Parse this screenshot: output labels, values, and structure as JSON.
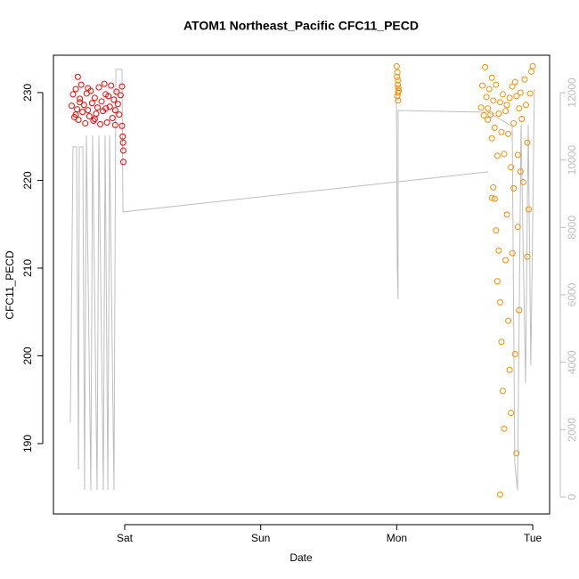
{
  "chart_data": {
    "type": "scatter",
    "title": "ATOM1 Northeast_Pacific CFC11_PECD",
    "x_label": "Date",
    "y_label": "CFC11_PECD",
    "xlim": [
      -0.524,
      3.124
    ],
    "xticks": [
      {
        "value": 0,
        "label": "Sat"
      },
      {
        "value": 1,
        "label": "Sun"
      },
      {
        "value": 2,
        "label": "Mon"
      },
      {
        "value": 3,
        "label": "Tue"
      }
    ],
    "ylim": [
      181.98,
      234.26
    ],
    "yticks": [
      190,
      200,
      210,
      220,
      230
    ],
    "y2lim": [
      -502,
      13110
    ],
    "y2ticks": [
      0,
      2000,
      4000,
      6000,
      8000,
      10000,
      12000
    ],
    "series": [
      {
        "color": "#ff0000",
        "x": [
          -0.39,
          -0.38,
          -0.37,
          -0.36,
          -0.35,
          -0.345,
          -0.34,
          -0.33,
          -0.32,
          -0.31,
          -0.3,
          -0.29,
          -0.28,
          -0.27,
          -0.26,
          -0.25,
          -0.24,
          -0.23,
          -0.22,
          -0.21,
          -0.2,
          -0.19,
          -0.18,
          -0.17,
          -0.16,
          -0.15,
          -0.14,
          -0.13,
          -0.12,
          -0.11,
          -0.1,
          -0.09,
          -0.08,
          -0.07,
          -0.06,
          -0.05,
          -0.04,
          -0.03,
          -0.02,
          -0.015,
          -0.012,
          -0.01,
          -0.01,
          -0.02,
          -0.36,
          -0.33,
          -0.27,
          -0.22,
          -0.14,
          -0.07
        ],
        "values": [
          228.5,
          229.8,
          227.2,
          230.4,
          228.1,
          231.8,
          226.9,
          229.3,
          230.9,
          227.8,
          228.6,
          226.5,
          229.9,
          228.0,
          227.3,
          230.2,
          228.8,
          226.8,
          229.4,
          227.6,
          228.3,
          230.6,
          226.4,
          229.0,
          227.9,
          231.0,
          228.2,
          226.6,
          229.6,
          228.4,
          230.8,
          227.1,
          229.2,
          226.3,
          230.1,
          228.7,
          227.5,
          229.7,
          226.2,
          225.0,
          224.3,
          223.4,
          222.1,
          230.7,
          227.5,
          228.9,
          230.5,
          227.0,
          229.8,
          228.0
        ]
      },
      {
        "color": "#ff8c00",
        "x": [
          2.0,
          2.005,
          2.01,
          2.008,
          2.012,
          2.004,
          2.01,
          2.015,
          2.002,
          2.01,
          2.65,
          2.66,
          2.67,
          2.67,
          2.68,
          2.69,
          2.7,
          2.7,
          2.71,
          2.71,
          2.72,
          2.72,
          2.73,
          2.73,
          2.74,
          2.74,
          2.75,
          2.75,
          2.76,
          2.76,
          2.77,
          2.77,
          2.78,
          2.78,
          2.79,
          2.79,
          2.8,
          2.8,
          2.81,
          2.81,
          2.82,
          2.82,
          2.83,
          2.83,
          2.84,
          2.84,
          2.85,
          2.85,
          2.86,
          2.86,
          2.87,
          2.87,
          2.88,
          2.88,
          2.89,
          2.89,
          2.9,
          2.9,
          2.91,
          2.91,
          2.92,
          2.93,
          2.94,
          2.95,
          2.96,
          2.97,
          2.98,
          2.99,
          3.0,
          2.96,
          2.62,
          2.63,
          2.64,
          2.76,
          2.7
        ],
        "values": [
          233.0,
          232.3,
          231.4,
          230.9,
          230.5,
          229.6,
          229.1,
          230.2,
          231.8,
          230.0,
          232.9,
          229.5,
          228.2,
          226.9,
          230.4,
          227.5,
          231.7,
          224.8,
          229.1,
          219.2,
          226.0,
          217.9,
          230.9,
          214.3,
          222.8,
          208.5,
          227.6,
          212.0,
          228.9,
          206.1,
          225.5,
          201.6,
          229.8,
          196.0,
          223.0,
          191.7,
          227.9,
          210.9,
          228.6,
          216.1,
          225.3,
          204.0,
          229.4,
          198.4,
          221.5,
          193.5,
          230.7,
          211.7,
          226.5,
          219.1,
          231.2,
          200.2,
          229.6,
          188.9,
          222.9,
          214.7,
          228.2,
          205.2,
          230.0,
          221.0,
          227.0,
          219.8,
          231.5,
          228.6,
          224.3,
          216.7,
          229.9,
          232.4,
          233.0,
          211.3,
          228.3,
          230.8,
          227.4,
          184.2,
          218.0
        ]
      },
      {
        "type": "line",
        "axis": "y2",
        "color": "#bebebe",
        "x": [
          -0.4,
          -0.38,
          -0.354,
          -0.34,
          -0.334,
          -0.308,
          -0.295,
          -0.282,
          -0.249,
          -0.236,
          -0.203,
          -0.19,
          -0.157,
          -0.144,
          -0.124,
          -0.111,
          -0.079,
          -0.065,
          -0.02,
          -0.013,
          2.672,
          null,
          1.997,
          2.004,
          2.01,
          2.01,
          2.672,
          2.849,
          2.868,
          2.888,
          2.914,
          2.947,
          2.967,
          2.986,
          3.012
        ],
        "values": [
          2220,
          10390,
          10390,
          820,
          10390,
          10390,
          210,
          10730,
          210,
          10730,
          210,
          10730,
          210,
          10730,
          210,
          10730,
          210,
          12690,
          12690,
          8460,
          9650,
          null,
          12240,
          6870,
          5870,
          11470,
          11420,
          11000,
          1000,
          210,
          11050,
          3380,
          11050,
          3910,
          12110
        ]
      }
    ]
  }
}
